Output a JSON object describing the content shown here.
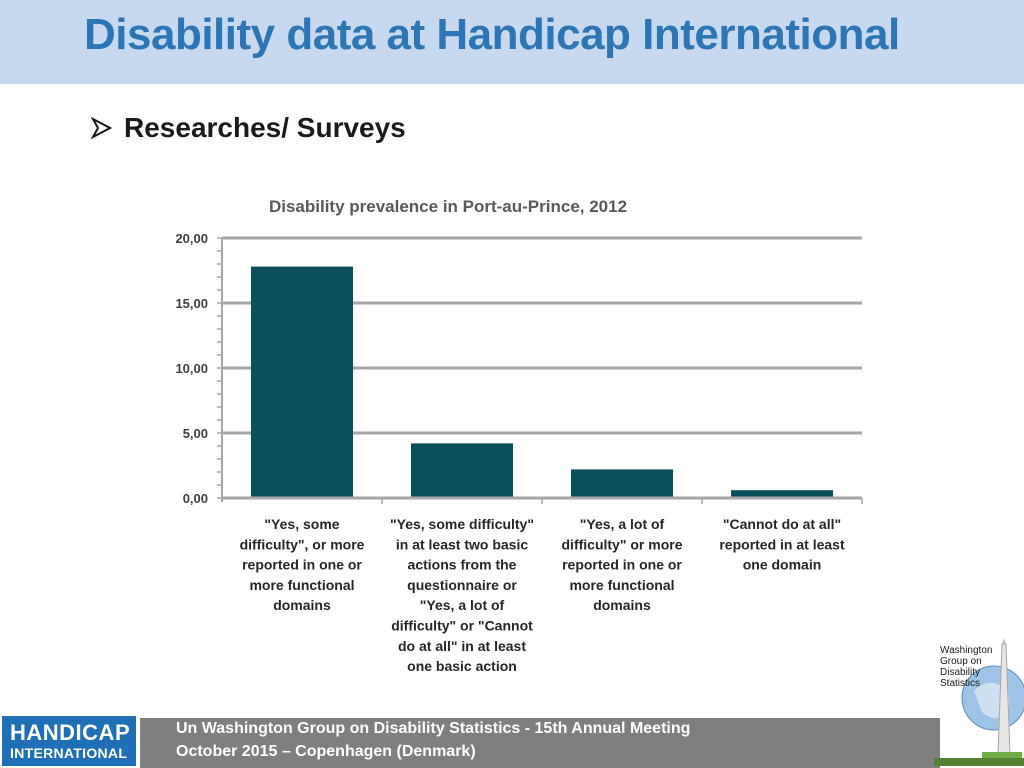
{
  "slide": {
    "title": "Disability data at Handicap International",
    "bullet": "Researches/ Surveys"
  },
  "footer": {
    "line1": "Un Washington Group on Disability Statistics - 15th Annual Meeting",
    "line2": "October 2015 – Copenhagen (Denmark)"
  },
  "logos": {
    "handicap_international": [
      "HANDICAP",
      "INTERNATIONAL"
    ],
    "washington_group": [
      "Washington",
      "Group on",
      "Disability",
      "Statistics"
    ]
  },
  "colors": {
    "header_band": "#c6d9f0",
    "title": "#2e75b6",
    "bar": "#0b4f5c",
    "gridline": "#a6a6a6",
    "footer": "#7f7f7f"
  },
  "chart_data": {
    "type": "bar",
    "title": "Disability prevalence in Port-au-Prince, 2012",
    "xlabel": "",
    "ylabel": "",
    "ylim": [
      0,
      20
    ],
    "yticks": [
      "0,00",
      "5,00",
      "10,00",
      "15,00",
      "20,00"
    ],
    "grid": true,
    "legend": "none",
    "categories": [
      [
        "\"Yes, some",
        "difficulty\", or more",
        "reported in one or",
        "more functional",
        "domains"
      ],
      [
        "\"Yes, some difficulty\"",
        "in at least two basic",
        "actions from the",
        "questionnaire or",
        "\"Yes, a lot of",
        "difficulty\" or \"Cannot",
        "do at all\" in at least",
        "one basic action"
      ],
      [
        "\"Yes, a lot of",
        "difficulty\" or more",
        "reported in one or",
        "more functional",
        "domains"
      ],
      [
        "\"Cannot do at all\"",
        "reported in at least",
        "one domain"
      ]
    ],
    "values": [
      17.8,
      4.2,
      2.2,
      0.6
    ]
  }
}
